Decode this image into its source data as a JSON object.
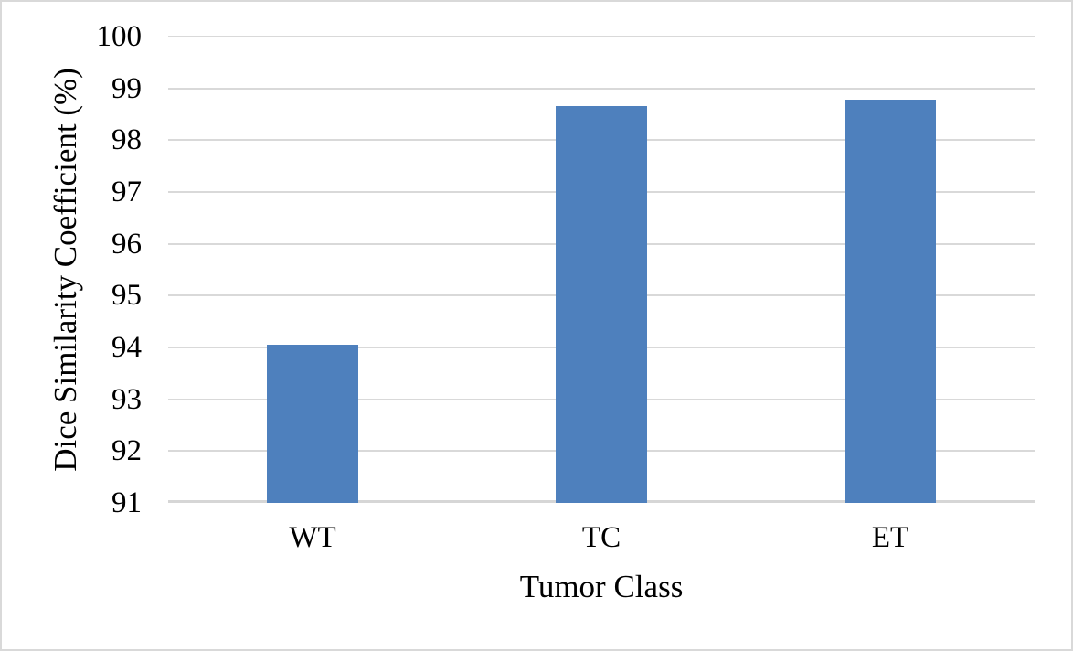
{
  "figure": {
    "background": "#FFFFFF",
    "border_color": "#D9D9D9"
  },
  "chart_data": {
    "type": "bar",
    "title": "",
    "xlabel": "Tumor Class",
    "ylabel": "Dice Similarity Coefficient (%)",
    "categories": [
      "WT",
      "TC",
      "ET"
    ],
    "values": [
      94.05,
      98.65,
      98.78
    ],
    "ylim": [
      91,
      100
    ],
    "ytick_step": 1,
    "yticks": [
      100,
      99,
      98,
      97,
      96,
      95,
      94,
      93,
      92,
      91
    ],
    "grid": true,
    "legend_position": "none",
    "bar_color": "#4E80BD",
    "gridline_color": "#D9D9D9",
    "axis_line_color": "#D6D6D6",
    "text_color": "#000000"
  }
}
